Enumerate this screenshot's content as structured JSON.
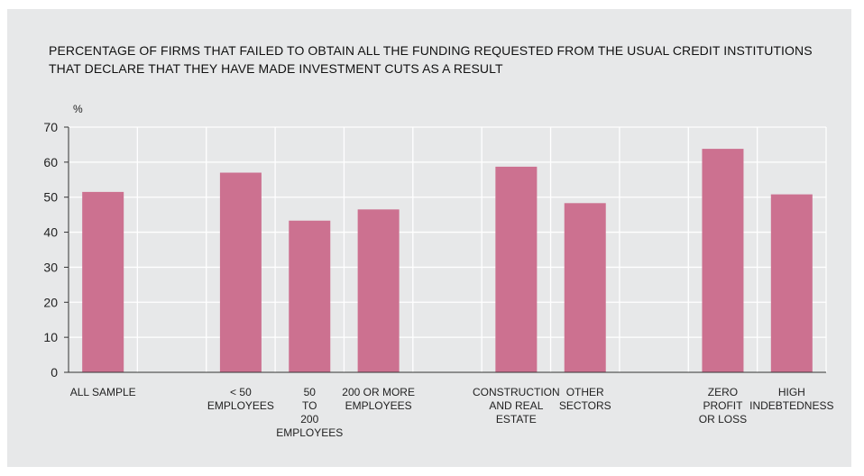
{
  "chart_data": {
    "type": "bar",
    "title": "PERCENTAGE OF FIRMS THAT FAILED TO OBTAIN ALL THE FUNDING REQUESTED FROM THE USUAL CREDIT INSTITUTIONS THAT DECLARE THAT THEY HAVE MADE INVESTMENT CUTS AS A RESULT",
    "ylabel": "%",
    "xlabel": "",
    "ylim": [
      0,
      70
    ],
    "yticks": [
      0,
      10,
      20,
      30,
      40,
      50,
      60,
      70
    ],
    "grid": true,
    "categories": [
      [
        "ALL SAMPLE"
      ],
      [],
      [
        "< 50",
        "EMPLOYEES"
      ],
      [
        "50",
        "TO",
        "200",
        "EMPLOYEES"
      ],
      [
        "200 OR MORE",
        "EMPLOYEES"
      ],
      [],
      [
        "CONSTRUCTION",
        "AND REAL",
        "ESTATE"
      ],
      [
        "OTHER",
        "SECTORS"
      ],
      [],
      [
        "ZERO",
        "PROFIT",
        "OR LOSS"
      ],
      [
        "HIGH",
        "INDEBTEDNESS"
      ]
    ],
    "values": [
      51.5,
      null,
      57,
      43.3,
      46.5,
      null,
      58.7,
      48.3,
      null,
      63.8,
      50.8
    ],
    "bar_color": "#cc7190"
  }
}
